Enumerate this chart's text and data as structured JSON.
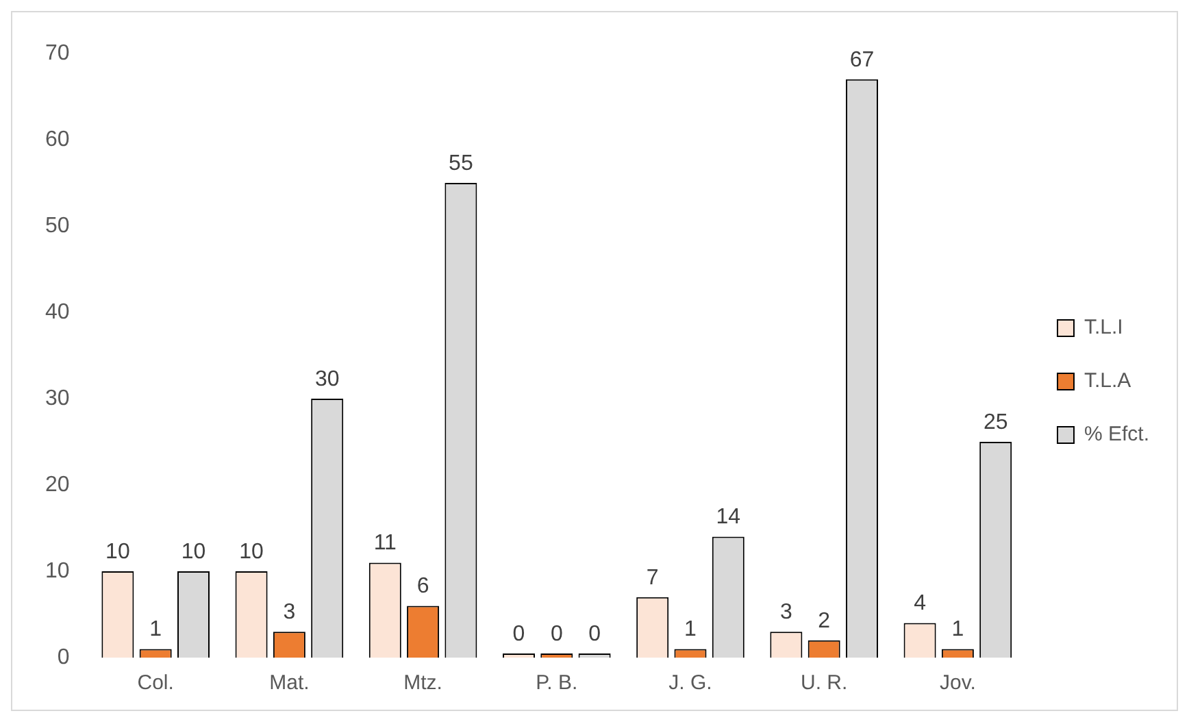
{
  "chart_data": {
    "type": "bar",
    "categories": [
      "Col.",
      "Mat.",
      "Mtz.",
      "P. B.",
      "J. G.",
      "U. R.",
      "Jov."
    ],
    "series": [
      {
        "name": "T.L.I",
        "color": "#fce4d6",
        "values": [
          10,
          10,
          11,
          0,
          7,
          3,
          4
        ]
      },
      {
        "name": "T.L.A",
        "color": "#ed7d31",
        "values": [
          1,
          3,
          6,
          0,
          1,
          2,
          1
        ]
      },
      {
        "name": "% Efct.",
        "color": "#d9d9d9",
        "values": [
          10,
          30,
          55,
          0,
          14,
          67,
          25
        ]
      }
    ],
    "ylim": [
      0,
      70
    ],
    "yticks": [
      0,
      10,
      20,
      30,
      40,
      50,
      60,
      70
    ],
    "grid": false,
    "legend": "right",
    "data_labels": true
  }
}
